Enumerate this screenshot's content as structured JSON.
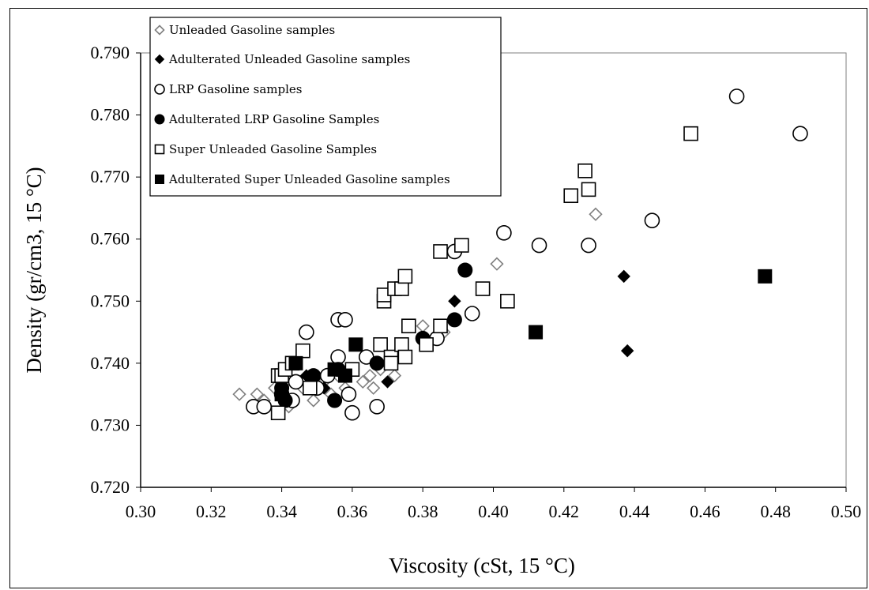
{
  "chart_data": {
    "type": "scatter",
    "xlabel": "Viscosity (cSt, 15 °C)",
    "ylabel": "Density  (gr/cm3, 15 °C)",
    "xlim": [
      0.3,
      0.5
    ],
    "ylim": [
      0.72,
      0.79
    ],
    "x_ticks": [
      "0.30",
      "0.32",
      "0.34",
      "0.36",
      "0.38",
      "0.40",
      "0.42",
      "0.44",
      "0.46",
      "0.48",
      "0.50"
    ],
    "y_ticks": [
      "0.720",
      "0.730",
      "0.740",
      "0.750",
      "0.760",
      "0.770",
      "0.780",
      "0.790"
    ],
    "grid": false,
    "legend_position": "top-left",
    "series": [
      {
        "name": "Unleaded Gasoline samples",
        "marker": "diamond-open",
        "color": "#7f7f7f",
        "points": [
          [
            0.328,
            0.735
          ],
          [
            0.333,
            0.735
          ],
          [
            0.335,
            0.734
          ],
          [
            0.338,
            0.736
          ],
          [
            0.342,
            0.733
          ],
          [
            0.344,
            0.737
          ],
          [
            0.346,
            0.736
          ],
          [
            0.349,
            0.734
          ],
          [
            0.352,
            0.737
          ],
          [
            0.354,
            0.735
          ],
          [
            0.356,
            0.738
          ],
          [
            0.358,
            0.736
          ],
          [
            0.36,
            0.739
          ],
          [
            0.363,
            0.737
          ],
          [
            0.365,
            0.738
          ],
          [
            0.366,
            0.736
          ],
          [
            0.368,
            0.739
          ],
          [
            0.372,
            0.738
          ],
          [
            0.38,
            0.746
          ],
          [
            0.386,
            0.745
          ],
          [
            0.401,
            0.756
          ],
          [
            0.429,
            0.764
          ]
        ]
      },
      {
        "name": "Adulterated Unleaded Gasoline samples",
        "marker": "diamond-filled",
        "color": "#000000",
        "points": [
          [
            0.34,
            0.737
          ],
          [
            0.347,
            0.738
          ],
          [
            0.352,
            0.736
          ],
          [
            0.37,
            0.737
          ],
          [
            0.389,
            0.75
          ],
          [
            0.437,
            0.754
          ],
          [
            0.438,
            0.742
          ]
        ]
      },
      {
        "name": "LRP Gasoline samples",
        "marker": "circle-open",
        "color": "#000000",
        "points": [
          [
            0.332,
            0.733
          ],
          [
            0.335,
            0.733
          ],
          [
            0.34,
            0.735
          ],
          [
            0.343,
            0.734
          ],
          [
            0.344,
            0.737
          ],
          [
            0.347,
            0.745
          ],
          [
            0.35,
            0.736
          ],
          [
            0.353,
            0.738
          ],
          [
            0.356,
            0.741
          ],
          [
            0.356,
            0.747
          ],
          [
            0.358,
            0.747
          ],
          [
            0.359,
            0.735
          ],
          [
            0.36,
            0.732
          ],
          [
            0.364,
            0.741
          ],
          [
            0.367,
            0.733
          ],
          [
            0.384,
            0.744
          ],
          [
            0.389,
            0.758
          ],
          [
            0.394,
            0.748
          ],
          [
            0.403,
            0.761
          ],
          [
            0.413,
            0.759
          ],
          [
            0.427,
            0.759
          ],
          [
            0.445,
            0.763
          ],
          [
            0.469,
            0.783
          ],
          [
            0.487,
            0.777
          ]
        ]
      },
      {
        "name": "Adulterated LRP Gasoline Samples",
        "marker": "circle-filled",
        "color": "#000000",
        "points": [
          [
            0.34,
            0.736
          ],
          [
            0.341,
            0.734
          ],
          [
            0.349,
            0.738
          ],
          [
            0.355,
            0.734
          ],
          [
            0.356,
            0.739
          ],
          [
            0.367,
            0.74
          ],
          [
            0.38,
            0.744
          ],
          [
            0.389,
            0.747
          ],
          [
            0.392,
            0.755
          ]
        ]
      },
      {
        "name": "Super Unleaded Gasoline Samples",
        "marker": "square-open",
        "color": "#000000",
        "points": [
          [
            0.339,
            0.732
          ],
          [
            0.339,
            0.738
          ],
          [
            0.34,
            0.738
          ],
          [
            0.341,
            0.739
          ],
          [
            0.343,
            0.74
          ],
          [
            0.346,
            0.742
          ],
          [
            0.348,
            0.736
          ],
          [
            0.36,
            0.739
          ],
          [
            0.368,
            0.743
          ],
          [
            0.369,
            0.75
          ],
          [
            0.369,
            0.751
          ],
          [
            0.371,
            0.741
          ],
          [
            0.371,
            0.74
          ],
          [
            0.372,
            0.752
          ],
          [
            0.374,
            0.752
          ],
          [
            0.374,
            0.743
          ],
          [
            0.375,
            0.741
          ],
          [
            0.375,
            0.754
          ],
          [
            0.376,
            0.746
          ],
          [
            0.381,
            0.743
          ],
          [
            0.385,
            0.758
          ],
          [
            0.385,
            0.746
          ],
          [
            0.391,
            0.759
          ],
          [
            0.397,
            0.752
          ],
          [
            0.404,
            0.75
          ],
          [
            0.422,
            0.767
          ],
          [
            0.426,
            0.771
          ],
          [
            0.427,
            0.768
          ],
          [
            0.456,
            0.777
          ]
        ]
      },
      {
        "name": "Adulterated Super Unleaded Gasoline samples",
        "marker": "square-filled",
        "color": "#000000",
        "points": [
          [
            0.34,
            0.735
          ],
          [
            0.344,
            0.74
          ],
          [
            0.355,
            0.739
          ],
          [
            0.358,
            0.738
          ],
          [
            0.361,
            0.743
          ],
          [
            0.412,
            0.745
          ],
          [
            0.477,
            0.754
          ]
        ]
      }
    ]
  }
}
